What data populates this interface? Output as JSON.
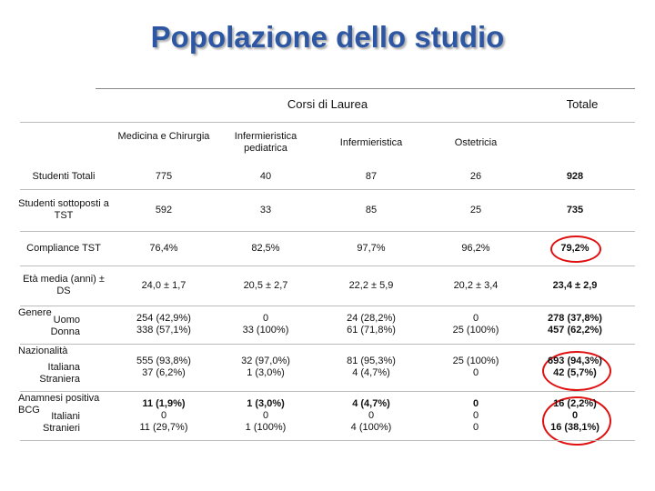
{
  "header": {
    "title": "Popolazione dello studio"
  },
  "table": {
    "group_header": "Corsi di Laurea",
    "total_header": "Totale",
    "columns": [
      "Medicina e Chirurgia",
      "Infermieristica pediatrica",
      "Infermieristica",
      "Ostetricia"
    ],
    "rows": [
      {
        "label": "Studenti Totali",
        "cells": [
          [
            "775"
          ],
          [
            "40"
          ],
          [
            "87"
          ],
          [
            "26"
          ],
          [
            "928"
          ]
        ]
      },
      {
        "label": "Studenti sottoposti a TST",
        "cells": [
          [
            "592"
          ],
          [
            "33"
          ],
          [
            "85"
          ],
          [
            "25"
          ],
          [
            "735"
          ]
        ]
      },
      {
        "label": "Compliance TST",
        "cells": [
          [
            "76,4%"
          ],
          [
            "82,5%"
          ],
          [
            "97,7%"
          ],
          [
            "96,2%"
          ],
          [
            "79,2%"
          ]
        ]
      },
      {
        "label": "Età media (anni) ± DS",
        "cells": [
          [
            "24,0 ± 1,7"
          ],
          [
            "20,5 ± 2,7"
          ],
          [
            "22,2 ± 5,9"
          ],
          [
            "20,2 ± 3,4"
          ],
          [
            "23,4 ± 2,9"
          ]
        ]
      },
      {
        "label": "Genere",
        "sublabels": [
          "Uomo",
          "Donna"
        ],
        "cells": [
          [
            "254 (42,9%)",
            "338 (57,1%)"
          ],
          [
            "0",
            "33 (100%)"
          ],
          [
            "24 (28,2%)",
            "61 (71,8%)"
          ],
          [
            "0",
            "25 (100%)"
          ],
          [
            "278 (37,8%)",
            "457 (62,2%)"
          ]
        ]
      },
      {
        "label": "Nazionalità",
        "sublabels": [
          "Italiana",
          "Straniera"
        ],
        "cells": [
          [
            "555 (93,8%)",
            "37 (6,2%)"
          ],
          [
            "32 (97,0%)",
            "1 (3,0%)"
          ],
          [
            "81 (95,3%)",
            "4 (4,7%)"
          ],
          [
            "25 (100%)",
            "0"
          ],
          [
            "693 (94,3%)",
            "42 (5,7%)"
          ]
        ]
      },
      {
        "label": "Anamnesi positiva BCG",
        "sublabels": [
          "Italiani",
          "Stranieri"
        ],
        "cells": [
          [
            "11 (1,9%)",
            "0",
            "11 (29,7%)"
          ],
          [
            "1 (3,0%)",
            "0",
            "1 (100%)"
          ],
          [
            "4 (4,7%)",
            "0",
            "4 (100%)"
          ],
          [
            "0",
            "0",
            "0"
          ],
          [
            "16 (2,2%)",
            "0",
            "16 (38,1%)"
          ]
        ]
      }
    ]
  }
}
